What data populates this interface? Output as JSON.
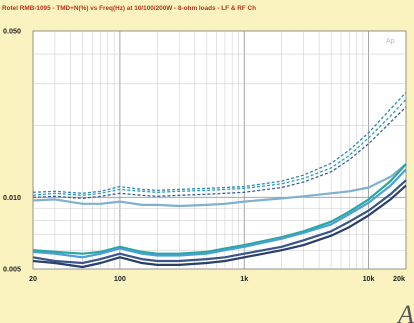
{
  "chart_data": {
    "type": "line",
    "title": "Rotel RMB-1095 - TMD+N(%) vs Freq(Hz) at 10/100/200W - 8-ohm loads - LF & RF Ch",
    "xlabel": "",
    "ylabel": "",
    "x_scale": "log",
    "y_scale": "log",
    "xlim": [
      20,
      20000
    ],
    "ylim": [
      0.005,
      0.05
    ],
    "grid": true,
    "legend": "none",
    "x_ticks": [
      {
        "value": 20,
        "label": "20"
      },
      {
        "value": 100,
        "label": "100"
      },
      {
        "value": 1000,
        "label": "1k"
      },
      {
        "value": 10000,
        "label": "10k"
      },
      {
        "value": 20000,
        "label": "20k"
      }
    ],
    "y_ticks": [
      {
        "value": 0.05,
        "label": "0.050"
      },
      {
        "value": 0.01,
        "label": "0.010"
      },
      {
        "value": 0.005,
        "label": "0.005"
      }
    ],
    "x": [
      20,
      30,
      50,
      70,
      100,
      150,
      200,
      300,
      500,
      700,
      1000,
      2000,
      3000,
      5000,
      7000,
      10000,
      15000,
      20000
    ],
    "series": [
      {
        "color": "#2f86c4",
        "dash": "3,2",
        "values": [
          0.0105,
          0.0106,
          0.0104,
          0.0106,
          0.0111,
          0.0108,
          0.0107,
          0.0108,
          0.0109,
          0.011,
          0.0111,
          0.0117,
          0.0124,
          0.0139,
          0.0158,
          0.0187,
          0.0235,
          0.0276
        ]
      },
      {
        "color": "#2aa2b0",
        "dash": "3,2",
        "values": [
          0.0102,
          0.0104,
          0.0102,
          0.0104,
          0.0108,
          0.0106,
          0.0105,
          0.0106,
          0.0107,
          0.0108,
          0.0109,
          0.0114,
          0.012,
          0.0133,
          0.015,
          0.0178,
          0.022,
          0.0258
        ]
      },
      {
        "color": "#3a5f96",
        "dash": "3,2",
        "values": [
          0.01,
          0.0101,
          0.0099,
          0.0101,
          0.0104,
          0.0102,
          0.0101,
          0.0102,
          0.0103,
          0.0104,
          0.0105,
          0.011,
          0.0116,
          0.0128,
          0.0144,
          0.0168,
          0.0207,
          0.024
        ]
      },
      {
        "color": "#7fb0cf",
        "dash": "",
        "values": [
          0.0097,
          0.0098,
          0.0094,
          0.0094,
          0.0096,
          0.0093,
          0.0093,
          0.0092,
          0.0093,
          0.0094,
          0.0096,
          0.0099,
          0.0101,
          0.0104,
          0.0106,
          0.011,
          0.0122,
          0.0138
        ]
      },
      {
        "color": "#29a6a0",
        "dash": "",
        "values": [
          0.006,
          0.0059,
          0.0058,
          0.0059,
          0.0062,
          0.0059,
          0.0058,
          0.0058,
          0.0059,
          0.0061,
          0.0063,
          0.0068,
          0.0072,
          0.0079,
          0.0087,
          0.0098,
          0.0117,
          0.0138
        ]
      },
      {
        "color": "#4aa0d6",
        "dash": "",
        "values": [
          0.0059,
          0.0058,
          0.0056,
          0.0058,
          0.0061,
          0.0058,
          0.0057,
          0.0057,
          0.0058,
          0.006,
          0.0062,
          0.0067,
          0.0071,
          0.0077,
          0.0085,
          0.0095,
          0.0112,
          0.0131
        ]
      },
      {
        "color": "#39558b",
        "dash": "",
        "values": [
          0.0056,
          0.0054,
          0.0053,
          0.0055,
          0.0058,
          0.0055,
          0.0054,
          0.0054,
          0.0055,
          0.0056,
          0.0058,
          0.0062,
          0.0066,
          0.0072,
          0.0079,
          0.0088,
          0.0103,
          0.0118
        ]
      },
      {
        "color": "#2c3f6b",
        "dash": "",
        "values": [
          0.0054,
          0.0053,
          0.0051,
          0.0053,
          0.0056,
          0.0053,
          0.0052,
          0.0052,
          0.0053,
          0.0054,
          0.0056,
          0.006,
          0.0063,
          0.0069,
          0.0075,
          0.0084,
          0.0098,
          0.0112
        ]
      }
    ],
    "watermark": "Ap",
    "corner_mark": "A"
  }
}
